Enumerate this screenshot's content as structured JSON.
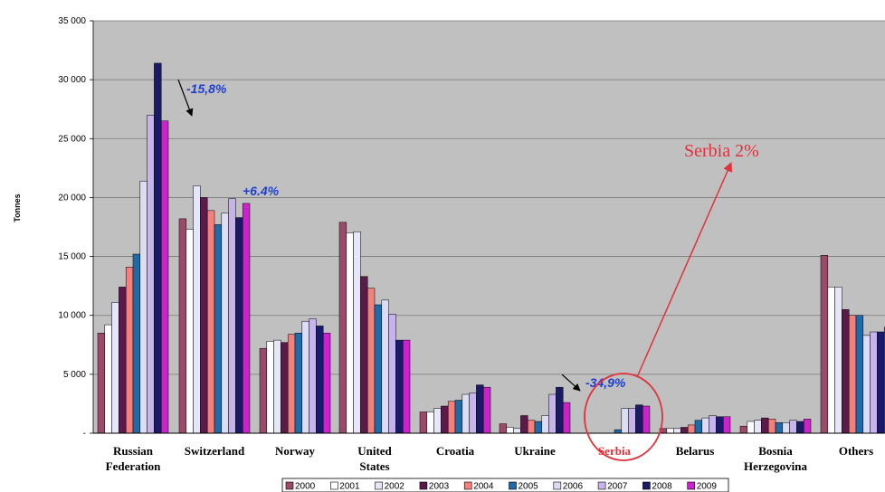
{
  "chart_data": {
    "type": "bar",
    "ylabel": "Tonnes",
    "ylim": [
      0,
      35000
    ],
    "yticks": [
      "-",
      "5 000",
      "10 000",
      "15 000",
      "20 000",
      "25 000",
      "30 000",
      "35 000"
    ],
    "categories": [
      [
        "Russian",
        "Federation"
      ],
      [
        "Switzerland"
      ],
      [
        "Norway"
      ],
      [
        "United",
        "States"
      ],
      [
        "Croatia"
      ],
      [
        "Ukraine"
      ],
      [
        "Serbia"
      ],
      [
        "Belarus"
      ],
      [
        "Bosnia",
        "Herzegovina"
      ],
      [
        "Others"
      ]
    ],
    "highlight_category": 6,
    "series": [
      {
        "name": "2000",
        "color": "#9c4a6a",
        "values": [
          8500,
          18200,
          7200,
          17900,
          1800,
          800,
          0,
          400,
          600,
          15100
        ]
      },
      {
        "name": "2001",
        "color": "#ffffff",
        "values": [
          9200,
          17300,
          7800,
          17000,
          1800,
          500,
          0,
          400,
          1000,
          12400
        ]
      },
      {
        "name": "2002",
        "color": "#e6e6fa",
        "values": [
          11100,
          21000,
          7900,
          17100,
          2100,
          400,
          0,
          400,
          1100,
          12400
        ]
      },
      {
        "name": "2003",
        "color": "#5a1a4a",
        "values": [
          12400,
          20000,
          7700,
          13300,
          2300,
          1500,
          0,
          500,
          1300,
          10500
        ]
      },
      {
        "name": "2004",
        "color": "#f4807c",
        "values": [
          14100,
          18900,
          8400,
          12300,
          2700,
          1100,
          0,
          700,
          1200,
          10000
        ]
      },
      {
        "name": "2005",
        "color": "#1f6aa8",
        "values": [
          15200,
          17700,
          8500,
          10900,
          2800,
          1000,
          300,
          1100,
          900,
          10000
        ]
      },
      {
        "name": "2006",
        "color": "#dcdcf5",
        "values": [
          21400,
          18700,
          9500,
          11300,
          3300,
          1500,
          2100,
          1300,
          900,
          8300
        ]
      },
      {
        "name": "2007",
        "color": "#c8b4ec",
        "values": [
          27000,
          19900,
          9700,
          10100,
          3400,
          3300,
          2100,
          1500,
          1100,
          8600
        ]
      },
      {
        "name": "2008",
        "color": "#1a1a6b",
        "values": [
          31400,
          18300,
          9100,
          7900,
          4100,
          3900,
          2400,
          1400,
          1000,
          8600
        ]
      },
      {
        "name": "2009",
        "color": "#cc22cc",
        "values": [
          26500,
          19500,
          8500,
          7900,
          3900,
          2600,
          2300,
          1400,
          1200,
          9000
        ]
      }
    ],
    "annotations": [
      {
        "text": "-15,8%",
        "category": 0
      },
      {
        "text": "+6.4%",
        "category": 1
      },
      {
        "text": "-34,9%",
        "category": 5
      }
    ],
    "callout": "Serbia 2%",
    "plot_background": "#c0c0c0",
    "gridlines": true,
    "legend_placement": "bottom-center"
  }
}
